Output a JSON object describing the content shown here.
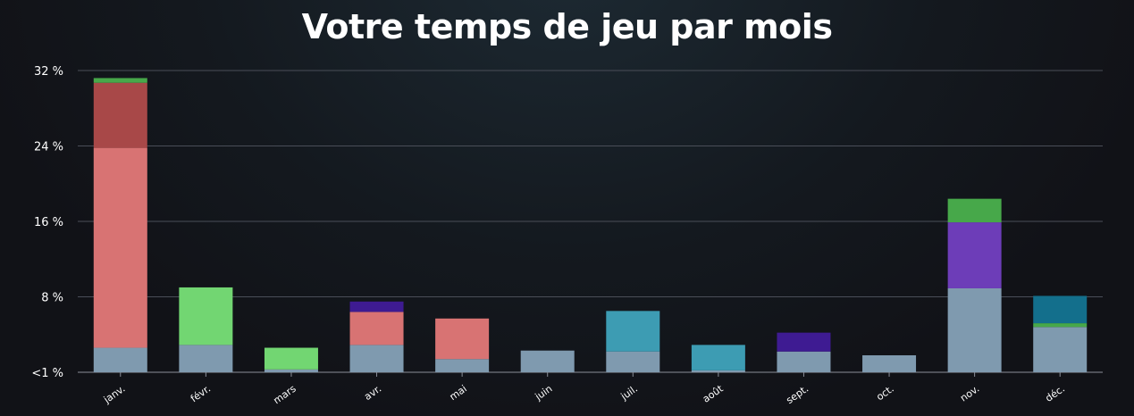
{
  "chart_data": {
    "type": "bar",
    "stacked": true,
    "title": "Votre temps de jeu par mois",
    "xlabel": "",
    "ylabel": "",
    "ylim": [
      0,
      32
    ],
    "yticks": [
      0,
      8,
      16,
      24,
      32
    ],
    "ytick_labels": [
      "<1 %",
      "8 %",
      "16 %",
      "24 %",
      "32 %"
    ],
    "grid": true,
    "legend": "none",
    "categories": [
      "janv.",
      "févr.",
      "mars",
      "avr.",
      "mai",
      "juin",
      "juil.",
      "août",
      "sept.",
      "oct.",
      "nov.",
      "déc."
    ],
    "series": [
      {
        "color": "#7f9aaf",
        "values": [
          2.6,
          2.9,
          0.3,
          2.9,
          1.4,
          2.3,
          2.2,
          0.2,
          2.2,
          1.8,
          8.9,
          4.8
        ]
      },
      {
        "color": "#d87373",
        "values": [
          21.2,
          0,
          0,
          3.5,
          4.3,
          0,
          0,
          0,
          0,
          0,
          0,
          0
        ]
      },
      {
        "color": "#a84848",
        "values": [
          6.9,
          0,
          0,
          0,
          0,
          0,
          0,
          0,
          0,
          0,
          0,
          0
        ]
      },
      {
        "color": "#72d672",
        "values": [
          0,
          6.1,
          2.3,
          0,
          0,
          0,
          0,
          0,
          0,
          0,
          0,
          0
        ]
      },
      {
        "color": "#3d9cb3",
        "values": [
          0,
          0,
          0,
          0,
          0,
          0,
          4.3,
          2.7,
          0,
          0,
          0,
          0
        ]
      },
      {
        "color": "#3e1b92",
        "values": [
          0,
          0,
          0,
          1.1,
          0,
          0,
          0,
          0,
          2.0,
          0,
          0,
          0
        ]
      },
      {
        "color": "#6d3db8",
        "values": [
          0,
          0,
          0,
          0,
          0,
          0,
          0,
          0,
          0,
          0,
          7.0,
          0
        ]
      },
      {
        "color": "#47a84a",
        "values": [
          0.5,
          0,
          0,
          0,
          0,
          0,
          0,
          0,
          0,
          0,
          2.5,
          0.4
        ]
      },
      {
        "color": "#136f8c",
        "values": [
          0,
          0,
          0,
          0,
          0,
          0,
          0,
          0,
          0,
          0,
          0,
          2.9
        ]
      }
    ]
  },
  "colors": {
    "grid": "#4a4e58",
    "axis": "#8a8e98",
    "text": "#ffffff"
  }
}
